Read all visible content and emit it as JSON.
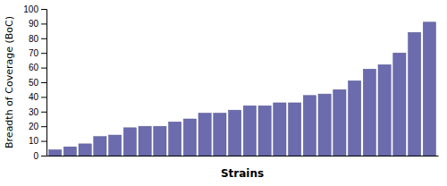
{
  "chart_data": {
    "type": "bar",
    "xlabel": "Strains",
    "ylabel": "Breadth of Coverage (BoC)",
    "categories": [
      null,
      null,
      null,
      null,
      null,
      null,
      null,
      null,
      null,
      null,
      null,
      null,
      null,
      null,
      null,
      null,
      null,
      null,
      null,
      null,
      null,
      null,
      null,
      null,
      null,
      null
    ],
    "values": [
      4,
      6,
      8,
      13,
      14,
      19,
      20,
      20,
      23,
      25,
      29,
      29,
      31,
      34,
      34,
      36,
      36,
      41,
      42,
      45,
      51,
      59,
      62,
      70,
      84,
      91
    ],
    "color": "#6B6BAE",
    "ylim": [
      0,
      100
    ],
    "yticks": [
      0,
      10,
      20,
      30,
      40,
      50,
      60,
      70,
      80,
      90,
      100
    ],
    "grid": false
  }
}
